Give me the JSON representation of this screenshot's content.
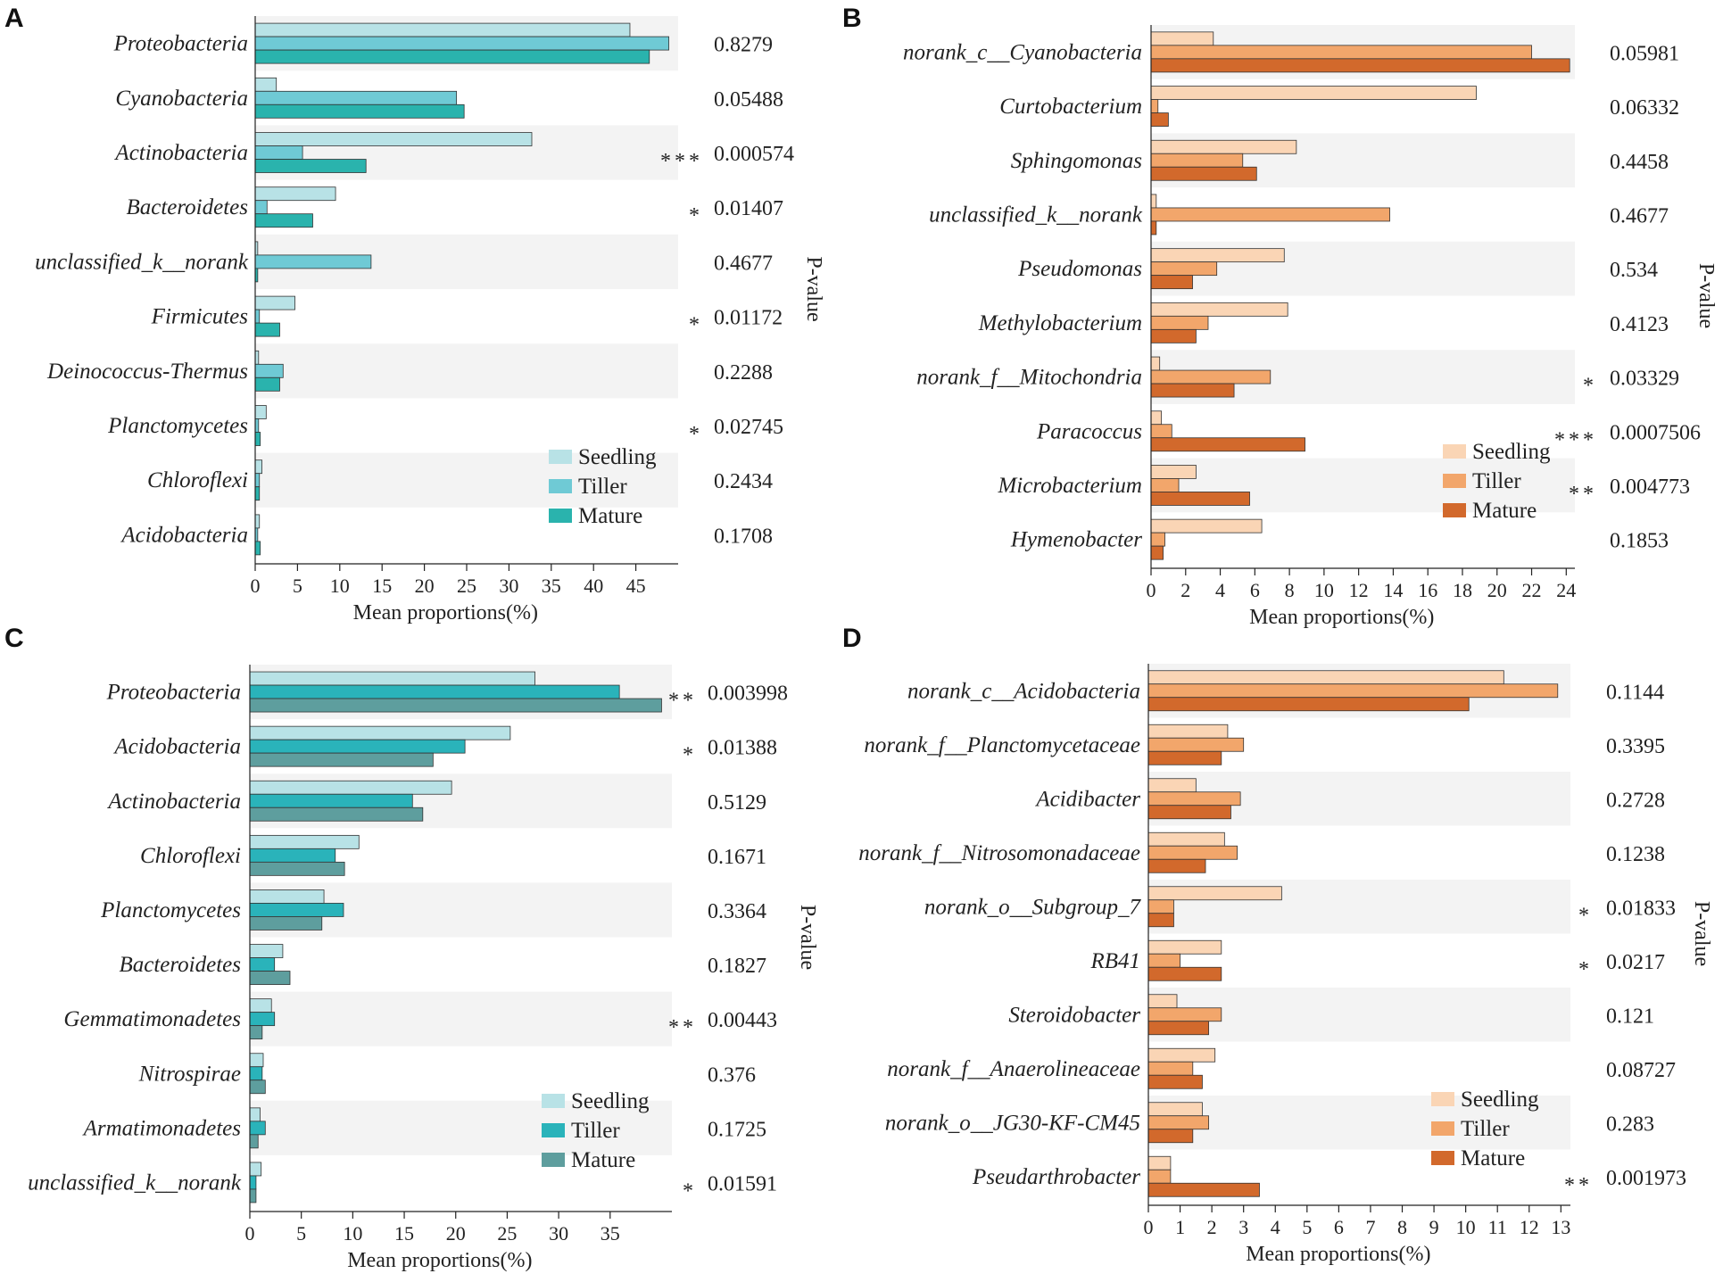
{
  "chart_data": [
    {
      "panel": "A",
      "type": "bar",
      "orientation": "horizontal",
      "xlabel": "Mean proportions(%)",
      "plabel": "P-value",
      "xlim": [
        0,
        50
      ],
      "xticks": [
        0,
        5,
        10,
        15,
        20,
        25,
        30,
        35,
        40,
        45
      ],
      "categories": [
        "Proteobacteria",
        "Cyanobacteria",
        "Actinobacteria",
        "Bacteroidetes",
        "unclassified_k__norank",
        "Firmicutes",
        "Deinococcus-Thermus",
        "Planctomycetes",
        "Chloroflexi",
        "Acidobacteria"
      ],
      "series": [
        {
          "name": "Seedling",
          "color": "#b8e2e6",
          "values": [
            44.3,
            2.5,
            32.7,
            9.5,
            0.3,
            4.7,
            0.4,
            1.3,
            0.8,
            0.5
          ]
        },
        {
          "name": "Tiller",
          "color": "#6fcad5",
          "values": [
            48.9,
            23.8,
            5.6,
            1.4,
            13.7,
            0.5,
            3.3,
            0.4,
            0.5,
            0.3
          ]
        },
        {
          "name": "Mature",
          "color": "#2ab3ad",
          "values": [
            46.6,
            24.7,
            13.1,
            6.8,
            0.3,
            2.9,
            2.9,
            0.6,
            0.5,
            0.6
          ]
        }
      ],
      "pvalues": [
        "0.8279",
        "0.05488",
        "0.000574",
        "0.01407",
        "0.4677",
        "0.01172",
        "0.2288",
        "0.02745",
        "0.2434",
        "0.1708"
      ],
      "significance": [
        "",
        "",
        "***",
        "*",
        "",
        "*",
        "",
        "*",
        "",
        ""
      ]
    },
    {
      "panel": "B",
      "type": "bar",
      "orientation": "horizontal",
      "xlabel": "Mean proportions(%)",
      "plabel": "P-value",
      "xlim": [
        0,
        24.5
      ],
      "xticks": [
        0,
        2,
        4,
        6,
        8,
        10,
        12,
        14,
        16,
        18,
        20,
        22,
        24
      ],
      "categories": [
        "norank_c__Cyanobacteria",
        "Curtobacterium",
        "Sphingomonas",
        "unclassified_k__norank",
        "Pseudomonas",
        "Methylobacterium",
        "norank_f__Mitochondria",
        "Paracoccus",
        "Microbacterium",
        "Hymenobacter"
      ],
      "series": [
        {
          "name": "Seedling",
          "color": "#fad5b5",
          "values": [
            3.6,
            18.8,
            8.4,
            0.3,
            7.7,
            7.9,
            0.5,
            0.6,
            2.6,
            6.4
          ]
        },
        {
          "name": "Tiller",
          "color": "#f2a66b",
          "values": [
            22.0,
            0.4,
            5.3,
            13.8,
            3.8,
            3.3,
            6.9,
            1.2,
            1.6,
            0.8
          ]
        },
        {
          "name": "Mature",
          "color": "#d2692c",
          "values": [
            24.2,
            1.0,
            6.1,
            0.3,
            2.4,
            2.6,
            4.8,
            8.9,
            5.7,
            0.7
          ]
        }
      ],
      "pvalues": [
        "0.05981",
        "0.06332",
        "0.4458",
        "0.4677",
        "0.534",
        "0.4123",
        "0.03329",
        "0.0007506",
        "0.004773",
        "0.1853"
      ],
      "significance": [
        "",
        "",
        "",
        "",
        "",
        "",
        "*",
        "***",
        "**",
        ""
      ]
    },
    {
      "panel": "C",
      "type": "bar",
      "orientation": "horizontal",
      "xlabel": "Mean proportions(%)",
      "plabel": "P-value",
      "xlim": [
        0,
        41
      ],
      "xticks": [
        0,
        5,
        10,
        15,
        20,
        25,
        30,
        35
      ],
      "categories": [
        "Proteobacteria",
        "Acidobacteria",
        "Actinobacteria",
        "Chloroflexi",
        "Planctomycetes",
        "Bacteroidetes",
        "Gemmatimonadetes",
        "Nitrospirae",
        "Armatimonadetes",
        "unclassified_k__norank"
      ],
      "series": [
        {
          "name": "Seedling",
          "color": "#b8e2e6",
          "values": [
            27.7,
            25.3,
            19.6,
            10.6,
            7.2,
            3.2,
            2.1,
            1.3,
            1.0,
            1.1
          ]
        },
        {
          "name": "Tiller",
          "color": "#2ab3ba",
          "values": [
            35.9,
            20.9,
            15.8,
            8.3,
            9.1,
            2.4,
            2.4,
            1.2,
            1.5,
            0.6
          ]
        },
        {
          "name": "Mature",
          "color": "#5e9e9e",
          "values": [
            40.0,
            17.8,
            16.8,
            9.2,
            7.0,
            3.9,
            1.2,
            1.5,
            0.8,
            0.6
          ]
        }
      ],
      "pvalues": [
        "0.003998",
        "0.01388",
        "0.5129",
        "0.1671",
        "0.3364",
        "0.1827",
        "0.00443",
        "0.376",
        "0.1725",
        "0.01591"
      ],
      "significance": [
        "**",
        "*",
        "",
        "",
        "",
        "",
        "**",
        "",
        "",
        "*"
      ]
    },
    {
      "panel": "D",
      "type": "bar",
      "orientation": "horizontal",
      "xlabel": "Mean proportions(%)",
      "plabel": "P-value",
      "xlim": [
        0,
        13.3
      ],
      "xticks": [
        0,
        1,
        2,
        3,
        4,
        5,
        6,
        7,
        8,
        9,
        10,
        11,
        12,
        13
      ],
      "categories": [
        "norank_c__Acidobacteria",
        "norank_f__Planctomycetaceae",
        "Acidibacter",
        "norank_f__Nitrosomonadaceae",
        "norank_o__Subgroup_7",
        "RB41",
        "Steroidobacter",
        "norank_f__Anaerolineaceae",
        "norank_o__JG30-KF-CM45",
        "Pseudarthrobacter"
      ],
      "series": [
        {
          "name": "Seedling",
          "color": "#fad5b5",
          "values": [
            11.2,
            2.5,
            1.5,
            2.4,
            4.2,
            2.3,
            0.9,
            2.1,
            1.7,
            0.7
          ]
        },
        {
          "name": "Tiller",
          "color": "#f2a66b",
          "values": [
            12.9,
            3.0,
            2.9,
            2.8,
            0.8,
            1.0,
            2.3,
            1.4,
            1.9,
            0.7
          ]
        },
        {
          "name": "Mature",
          "color": "#d2692c",
          "values": [
            10.1,
            2.3,
            2.6,
            1.8,
            0.8,
            2.3,
            1.9,
            1.7,
            1.4,
            3.5
          ]
        }
      ],
      "pvalues": [
        "0.1144",
        "0.3395",
        "0.2728",
        "0.1238",
        "0.01833",
        "0.0217",
        "0.121",
        "0.08727",
        "0.283",
        "0.001973"
      ],
      "significance": [
        "",
        "",
        "",
        "",
        "*",
        "*",
        "",
        "",
        "",
        "**"
      ]
    }
  ]
}
